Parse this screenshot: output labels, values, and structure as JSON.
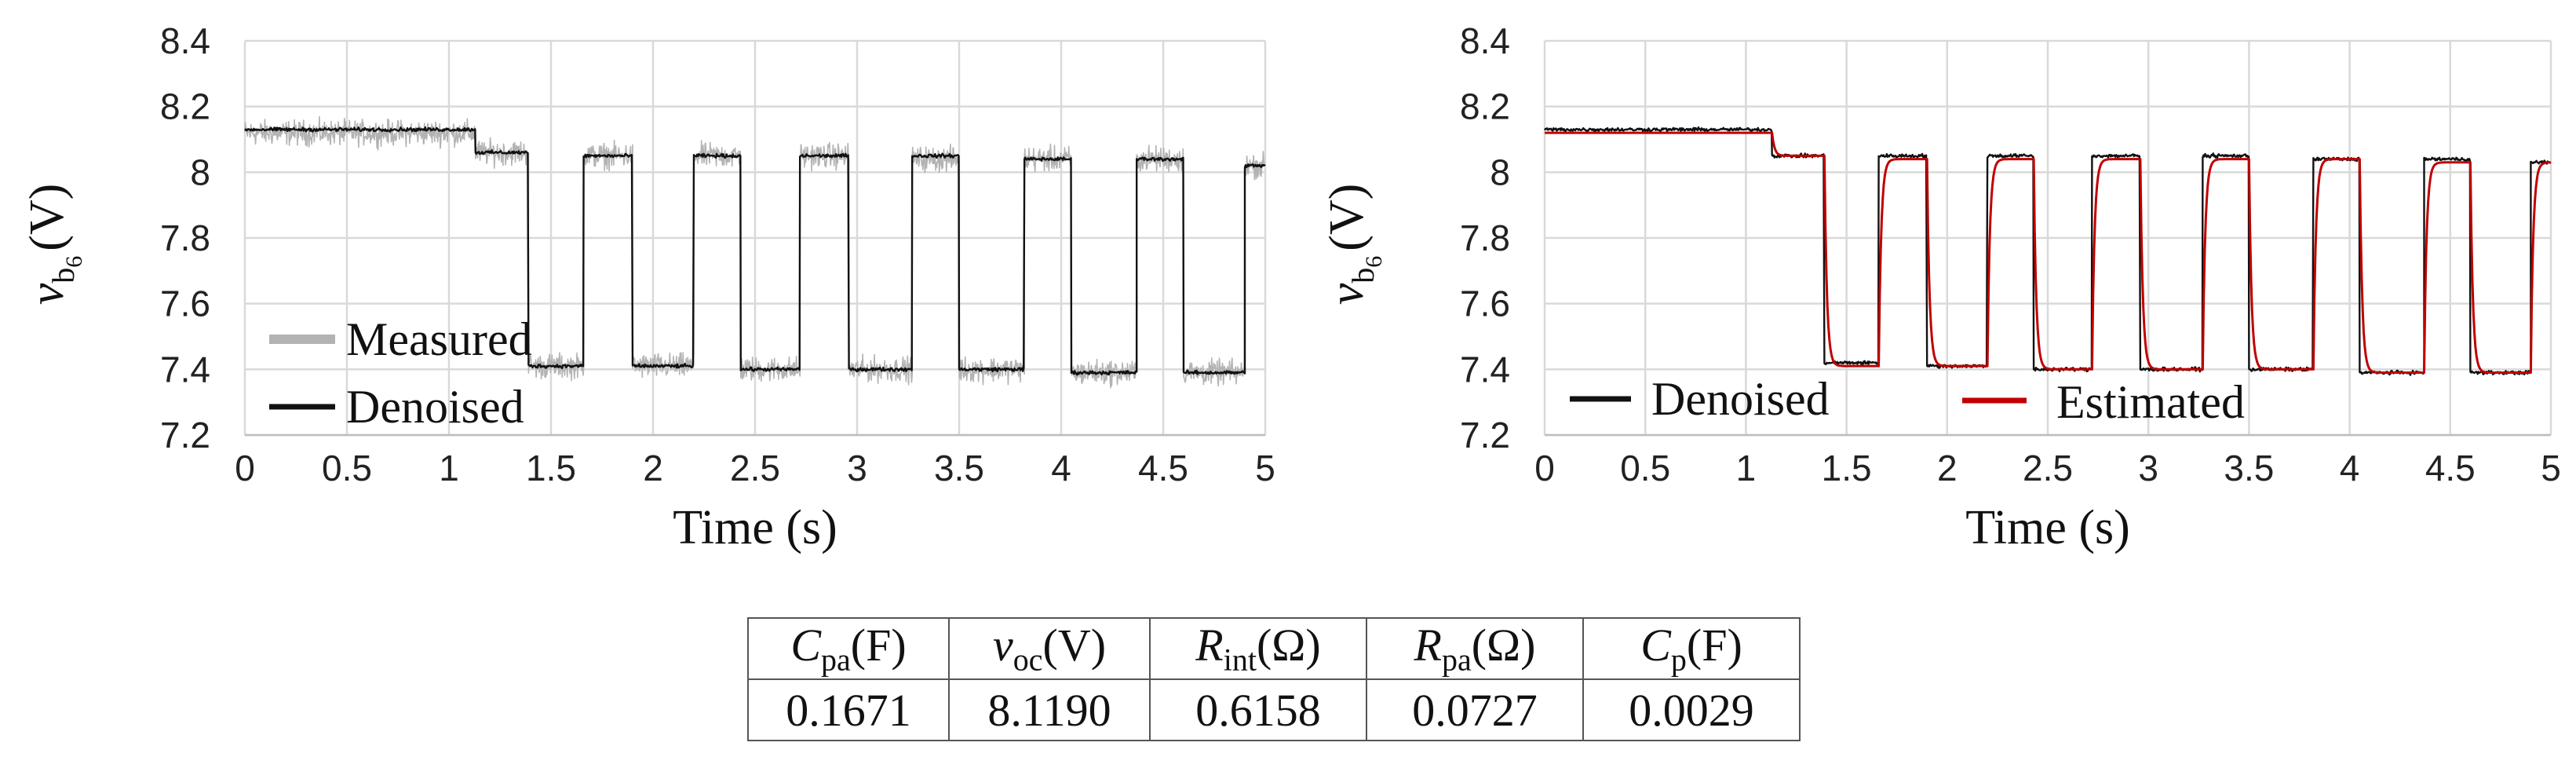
{
  "chart_data": [
    {
      "type": "line",
      "id": "left",
      "xlabel": "Time (s)",
      "ylabel": {
        "base": "v",
        "sub": "b",
        "subsub": "6",
        "unit": "(V)"
      },
      "xlim": [
        0,
        5
      ],
      "ylim": [
        7.2,
        8.4
      ],
      "xticks": [
        0,
        0.5,
        1,
        1.5,
        2,
        2.5,
        3,
        3.5,
        4,
        4.5,
        5
      ],
      "xtick_labels": [
        "0",
        "0.5",
        "1",
        "1.5",
        "2",
        "2.5",
        "3",
        "3.5",
        "4",
        "4.5",
        "5"
      ],
      "yticks": [
        7.2,
        7.4,
        7.6,
        7.8,
        8,
        8.2,
        8.4
      ],
      "ytick_labels": [
        "7.2",
        "7.4",
        "7.6",
        "7.8",
        "8",
        "8.2",
        "8.4"
      ],
      "grid": true,
      "legend": {
        "position": "bottom-left",
        "entries": [
          "Measured",
          "Denoised"
        ]
      },
      "series": [
        {
          "name": "Measured",
          "color": "#b3b3b3",
          "kind": "noisy",
          "segments": [
            [
              0,
              1.13,
              8.12
            ],
            [
              1.13,
              1.39,
              8.06
            ],
            [
              1.39,
              1.66,
              7.41
            ],
            [
              1.66,
              1.9,
              8.05
            ],
            [
              1.9,
              2.2,
              7.41
            ],
            [
              2.2,
              2.43,
              8.05
            ],
            [
              2.43,
              2.72,
              7.4
            ],
            [
              2.72,
              2.96,
              8.05
            ],
            [
              2.96,
              3.27,
              7.4
            ],
            [
              3.27,
              3.5,
              8.04
            ],
            [
              3.5,
              3.82,
              7.4
            ],
            [
              3.82,
              4.05,
              8.04
            ],
            [
              4.05,
              4.37,
              7.39
            ],
            [
              4.37,
              4.6,
              8.04
            ],
            [
              4.6,
              4.9,
              7.39
            ],
            [
              4.9,
              5.0,
              8.02
            ]
          ],
          "noise_amplitude": 0.055
        },
        {
          "name": "Denoised",
          "color": "#111111",
          "kind": "noisy",
          "segments": [
            [
              0,
              1.13,
              8.13
            ],
            [
              1.13,
              1.39,
              8.06
            ],
            [
              1.39,
              1.66,
              7.41
            ],
            [
              1.66,
              1.9,
              8.05
            ],
            [
              1.9,
              2.2,
              7.41
            ],
            [
              2.2,
              2.43,
              8.05
            ],
            [
              2.43,
              2.72,
              7.4
            ],
            [
              2.72,
              2.96,
              8.05
            ],
            [
              2.96,
              3.27,
              7.4
            ],
            [
              3.27,
              3.5,
              8.05
            ],
            [
              3.5,
              3.82,
              7.4
            ],
            [
              3.82,
              4.05,
              8.04
            ],
            [
              4.05,
              4.37,
              7.39
            ],
            [
              4.37,
              4.6,
              8.04
            ],
            [
              4.6,
              4.9,
              7.39
            ],
            [
              4.9,
              5.0,
              8.02
            ]
          ],
          "noise_amplitude": 0.008
        }
      ]
    },
    {
      "type": "line",
      "id": "right",
      "xlabel": "Time (s)",
      "ylabel": {
        "base": "v",
        "sub": "b",
        "subsub": "6",
        "unit": "(V)"
      },
      "xlim": [
        0,
        5
      ],
      "ylim": [
        7.2,
        8.4
      ],
      "xticks": [
        0,
        0.5,
        1,
        1.5,
        2,
        2.5,
        3,
        3.5,
        4,
        4.5,
        5
      ],
      "xtick_labels": [
        "0",
        "0.5",
        "1",
        "1.5",
        "2",
        "2.5",
        "3",
        "3.5",
        "4",
        "4.5",
        "5"
      ],
      "yticks": [
        7.2,
        7.4,
        7.6,
        7.8,
        8,
        8.2,
        8.4
      ],
      "ytick_labels": [
        "7.2",
        "7.4",
        "7.6",
        "7.8",
        "8",
        "8.2",
        "8.4"
      ],
      "grid": true,
      "legend": {
        "position": "bottom",
        "entries": [
          "Denoised",
          "Estimated"
        ]
      },
      "series": [
        {
          "name": "Denoised",
          "color": "#111111",
          "kind": "noisy",
          "segments": [
            [
              0,
              1.13,
              8.13
            ],
            [
              1.13,
              1.39,
              8.05
            ],
            [
              1.39,
              1.66,
              7.42
            ],
            [
              1.66,
              1.9,
              8.05
            ],
            [
              1.9,
              2.2,
              7.41
            ],
            [
              2.2,
              2.43,
              8.05
            ],
            [
              2.43,
              2.72,
              7.4
            ],
            [
              2.72,
              2.96,
              8.05
            ],
            [
              2.96,
              3.27,
              7.4
            ],
            [
              3.27,
              3.5,
              8.05
            ],
            [
              3.5,
              3.82,
              7.4
            ],
            [
              3.82,
              4.05,
              8.04
            ],
            [
              4.05,
              4.37,
              7.39
            ],
            [
              4.37,
              4.6,
              8.04
            ],
            [
              4.6,
              4.9,
              7.39
            ],
            [
              4.9,
              5.0,
              8.03
            ]
          ],
          "noise_amplitude": 0.008
        },
        {
          "name": "Estimated",
          "color": "#c00000",
          "kind": "rc",
          "segments": [
            [
              0,
              1.13,
              8.12
            ],
            [
              1.13,
              1.39,
              8.05
            ],
            [
              1.39,
              1.66,
              7.41
            ],
            [
              1.66,
              1.9,
              8.04
            ],
            [
              1.9,
              2.2,
              7.41
            ],
            [
              2.2,
              2.43,
              8.04
            ],
            [
              2.43,
              2.72,
              7.4
            ],
            [
              2.72,
              2.96,
              8.04
            ],
            [
              2.96,
              3.27,
              7.4
            ],
            [
              3.27,
              3.5,
              8.04
            ],
            [
              3.5,
              3.82,
              7.4
            ],
            [
              3.82,
              4.05,
              8.04
            ],
            [
              4.05,
              4.37,
              7.39
            ],
            [
              4.37,
              4.6,
              8.03
            ],
            [
              4.6,
              4.9,
              7.39
            ],
            [
              4.9,
              5.0,
              8.03
            ]
          ]
        }
      ]
    }
  ],
  "param_table": {
    "headers": [
      {
        "sym": "C",
        "sub": "pa",
        "unit": "(F)"
      },
      {
        "sym": "v",
        "sub": "oc",
        "unit": "(V)"
      },
      {
        "sym": "R",
        "sub": "int",
        "unit": "(Ω)"
      },
      {
        "sym": "R",
        "sub": "pa",
        "unit": "(Ω)"
      },
      {
        "sym": "C",
        "sub": "p",
        "unit": "(F)"
      }
    ],
    "values": [
      "0.1671",
      "8.1190",
      "0.6158",
      "0.0727",
      "0.0029"
    ]
  }
}
